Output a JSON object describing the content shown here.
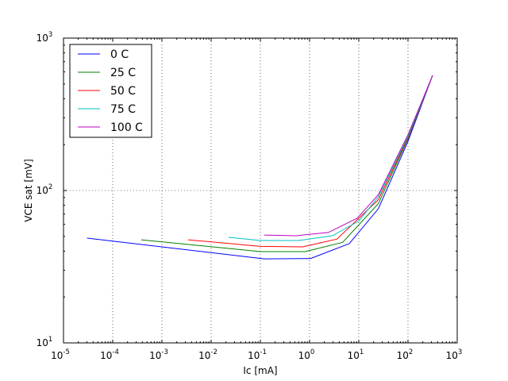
{
  "chart_data": {
    "type": "line",
    "xscale": "log",
    "yscale": "log",
    "xlabel": "Ic [mA]",
    "ylabel": "VCE sat [mV]",
    "xlim": [
      1e-05,
      1000
    ],
    "ylim": [
      10,
      1000
    ],
    "grid": true,
    "legend_placement": "top-left",
    "x_ticks": [
      {
        "base": "10",
        "exp": "-5",
        "value": 1e-05
      },
      {
        "base": "10",
        "exp": "-4",
        "value": 0.0001
      },
      {
        "base": "10",
        "exp": "-3",
        "value": 0.001
      },
      {
        "base": "10",
        "exp": "-2",
        "value": 0.01
      },
      {
        "base": "10",
        "exp": "-1",
        "value": 0.1
      },
      {
        "base": "10",
        "exp": "0",
        "value": 1
      },
      {
        "base": "10",
        "exp": "1",
        "value": 10
      },
      {
        "base": "10",
        "exp": "2",
        "value": 100
      },
      {
        "base": "10",
        "exp": "3",
        "value": 1000
      }
    ],
    "y_ticks": [
      {
        "base": "10",
        "exp": "1",
        "value": 10
      },
      {
        "base": "10",
        "exp": "2",
        "value": 100
      },
      {
        "base": "10",
        "exp": "3",
        "value": 1000
      }
    ],
    "series": [
      {
        "name": "0 C",
        "color": "#0000ff",
        "x": [
          3e-05,
          0.12,
          1.04,
          6.4,
          25,
          100,
          316
        ],
        "y": [
          48.7,
          35.6,
          35.8,
          44.8,
          76,
          210,
          569
        ]
      },
      {
        "name": "25 C",
        "color": "#008000",
        "x": [
          0.00038,
          0.1,
          0.81,
          4.7,
          25,
          100,
          316
        ],
        "y": [
          47.5,
          39.7,
          39.7,
          45.7,
          82,
          218,
          569
        ]
      },
      {
        "name": "50 C",
        "color": "#ff0000",
        "x": [
          0.0034,
          0.1,
          0.73,
          3.6,
          25,
          100,
          316
        ],
        "y": [
          47.5,
          43,
          42.7,
          48,
          87,
          222,
          569
        ]
      },
      {
        "name": "75 C",
        "color": "#00bfbf",
        "x": [
          0.0226,
          0.1,
          0.6,
          2.9,
          10,
          25,
          100,
          316
        ],
        "y": [
          49.3,
          47,
          47,
          50.5,
          63,
          91,
          226,
          569
        ]
      },
      {
        "name": "100 C",
        "color": "#bf00bf",
        "x": [
          0.12,
          0.53,
          2.4,
          9.3,
          25,
          100,
          316
        ],
        "y": [
          51,
          50.5,
          53,
          65.7,
          94,
          232,
          569
        ]
      }
    ]
  }
}
